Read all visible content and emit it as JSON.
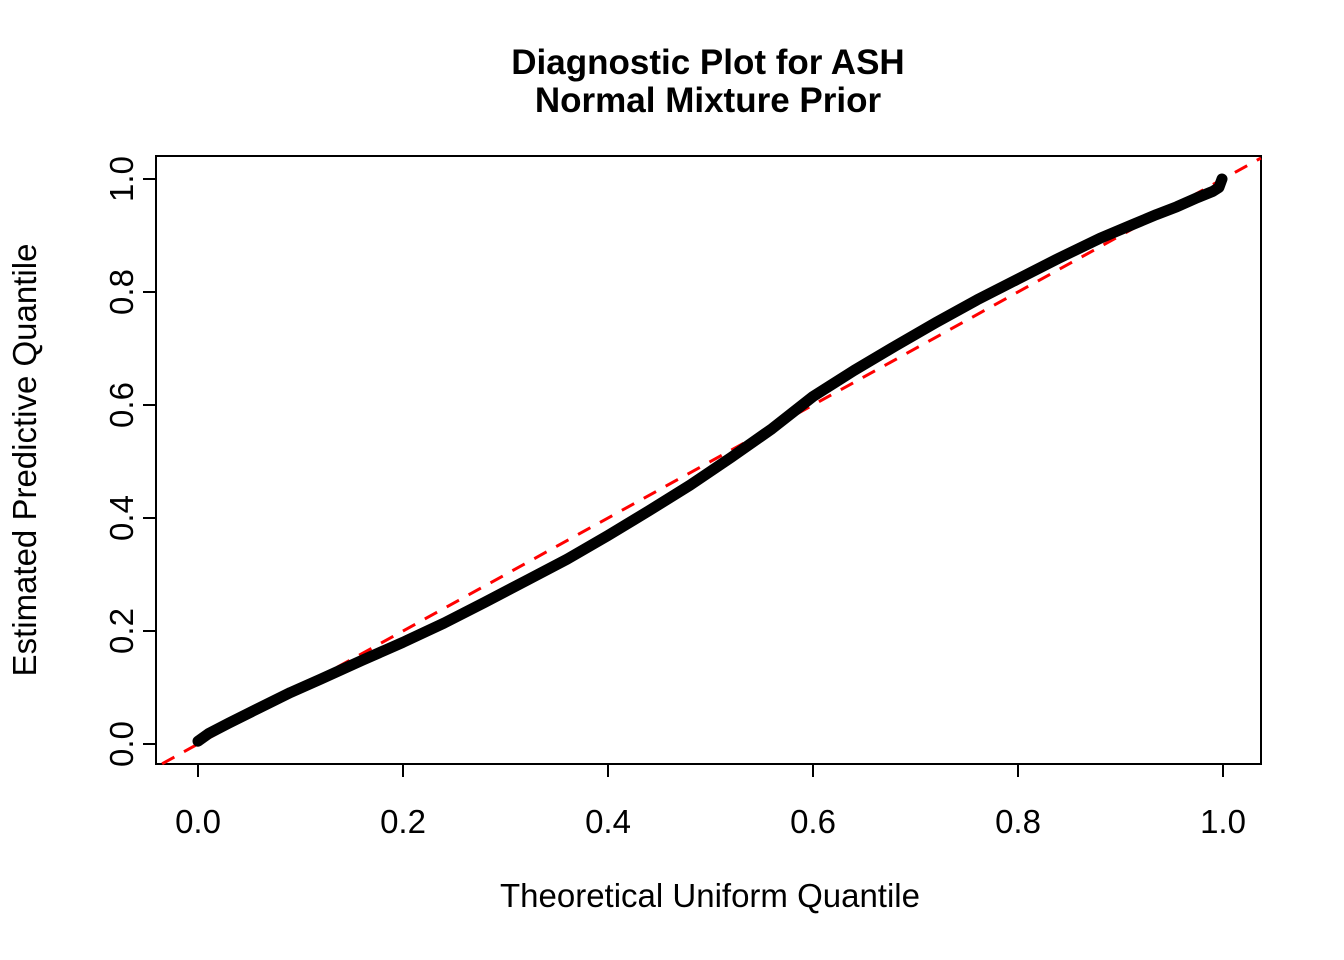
{
  "chart_data": {
    "type": "line",
    "subtype": "qq-plot",
    "title": "Diagnostic Plot for ASH\nNormal Mixture Prior",
    "title_lines": [
      "Diagnostic Plot for ASH",
      "Normal Mixture Prior"
    ],
    "xlabel": "Theoretical Uniform Quantile",
    "ylabel": "Estimated Predictive Quantile",
    "xlim": [
      -0.04,
      1.04
    ],
    "ylim": [
      -0.04,
      1.04
    ],
    "grid": false,
    "legend": "none",
    "x_tick_labels": [
      "0.0",
      "0.2",
      "0.4",
      "0.6",
      "0.8",
      "1.0"
    ],
    "y_tick_labels": [
      "0.0",
      "0.2",
      "0.4",
      "0.6",
      "0.8",
      "1.0"
    ],
    "x_tick_values": [
      0.0,
      0.2,
      0.4,
      0.6,
      0.8,
      1.0
    ],
    "y_tick_values": [
      0.0,
      0.2,
      0.4,
      0.6,
      0.8,
      1.0
    ],
    "colors": {
      "curve": "#000000",
      "reference": "#FF0000",
      "background": "#FFFFFF"
    },
    "series": [
      {
        "name": "estimated-vs-theoretical-quantile",
        "type": "thick-point-curve",
        "color": "#000000",
        "x": [
          0.0,
          0.01,
          0.03,
          0.06,
          0.09,
          0.12,
          0.16,
          0.2,
          0.24,
          0.28,
          0.32,
          0.36,
          0.4,
          0.44,
          0.48,
          0.52,
          0.56,
          0.6,
          0.64,
          0.68,
          0.72,
          0.76,
          0.8,
          0.84,
          0.88,
          0.91,
          0.935,
          0.955,
          0.975,
          0.99,
          0.996,
          0.999
        ],
        "y": [
          0.005,
          0.018,
          0.037,
          0.064,
          0.091,
          0.115,
          0.148,
          0.18,
          0.214,
          0.251,
          0.289,
          0.327,
          0.369,
          0.413,
          0.458,
          0.507,
          0.558,
          0.615,
          0.661,
          0.704,
          0.746,
          0.786,
          0.823,
          0.86,
          0.895,
          0.918,
          0.937,
          0.951,
          0.967,
          0.978,
          0.985,
          1.0
        ]
      },
      {
        "name": "reference-diagonal-y-equals-x",
        "type": "dashed-line",
        "color": "#FF0000",
        "x": [
          -0.035,
          1.037
        ],
        "y": [
          -0.035,
          1.037
        ]
      }
    ]
  }
}
